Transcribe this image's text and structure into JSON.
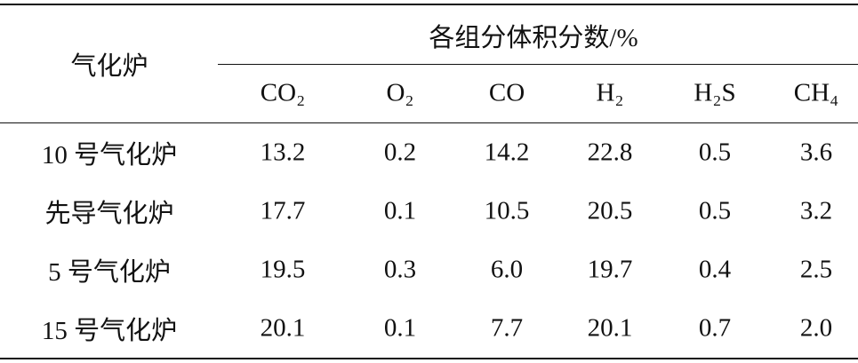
{
  "header": {
    "row_label": "气化炉",
    "group": "各组分体积分数/%",
    "columns": [
      "CO₂",
      "O₂",
      "CO",
      "H₂",
      "H₂S",
      "CH₄"
    ]
  },
  "table": {
    "rows": [
      [
        "10 号气化炉",
        "13.2",
        "0.2",
        "14.2",
        "22.8",
        "0.5",
        "3.6"
      ],
      [
        "先导气化炉",
        "17.7",
        "0.1",
        "10.5",
        "20.5",
        "0.5",
        "3.2"
      ],
      [
        "5 号气化炉",
        "19.5",
        "0.3",
        "6.0",
        "19.7",
        "0.4",
        "2.5"
      ],
      [
        "15 号气化炉",
        "20.1",
        "0.1",
        "7.7",
        "20.1",
        "0.7",
        "2.0"
      ]
    ]
  }
}
